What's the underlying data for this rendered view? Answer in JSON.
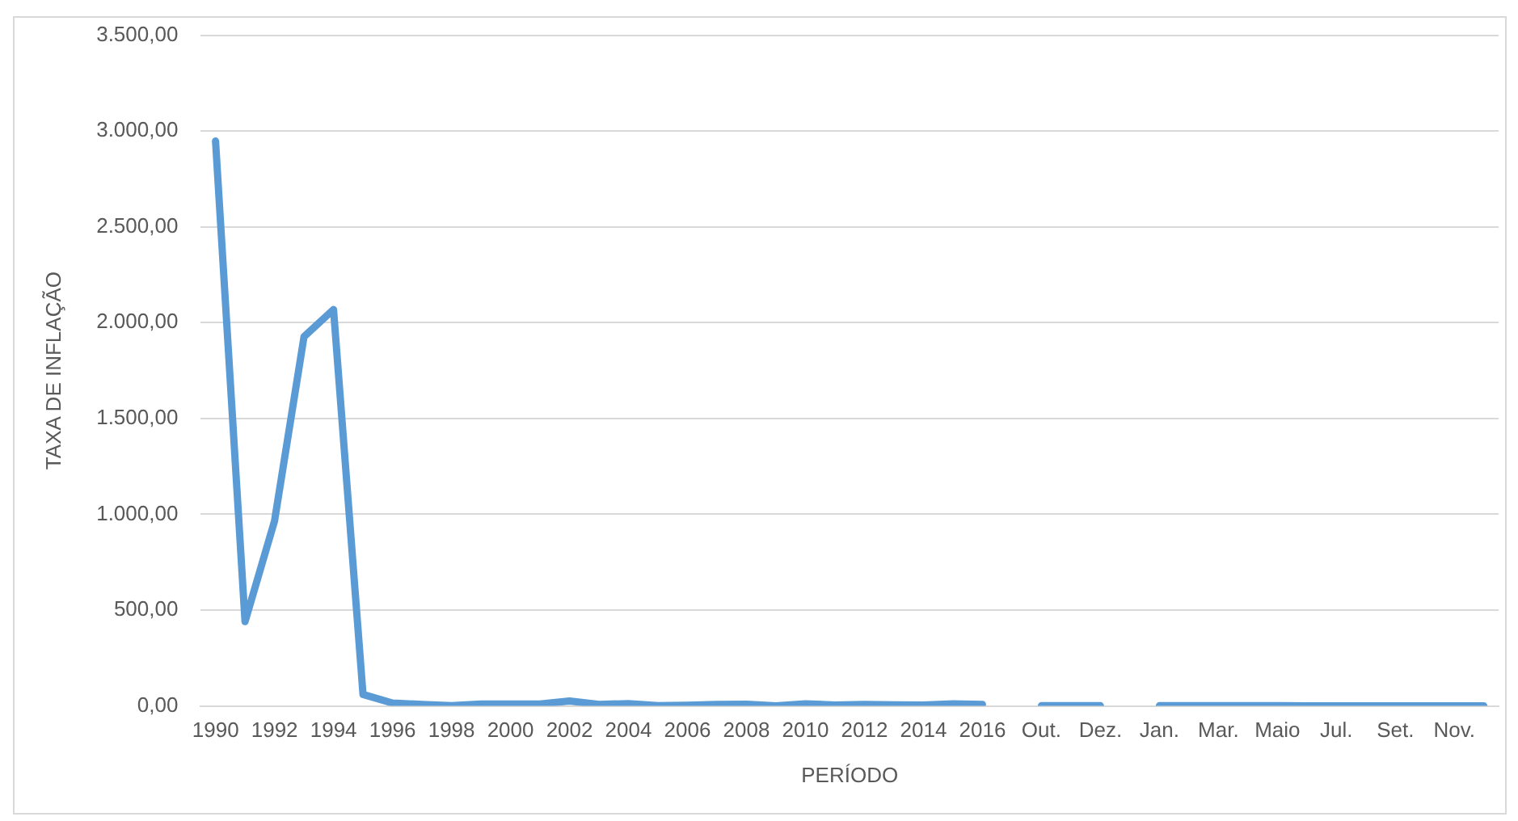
{
  "chart_data": {
    "type": "line",
    "xlabel": "PERÍODO",
    "ylabel": "TAXA DE INFLAÇÃO",
    "categories": [
      "1990",
      null,
      "1992",
      null,
      "1994",
      null,
      "1996",
      null,
      "1998",
      null,
      "2000",
      null,
      "2002",
      null,
      "2004",
      null,
      "2006",
      null,
      "2008",
      null,
      "2010",
      null,
      "2012",
      null,
      "2014",
      null,
      "2016",
      null,
      "Out.",
      null,
      "Dez.",
      null,
      "Jan.",
      null,
      "Mar.",
      null,
      "Maio",
      null,
      "Jul.",
      null,
      "Set.",
      null,
      "Nov.",
      null
    ],
    "series": [
      {
        "color": "#5b9bd5",
        "values": [
          2948,
          440,
          965,
          1927,
          2069,
          60,
          15,
          8,
          2,
          10,
          10,
          10,
          26,
          8,
          12,
          2,
          4,
          8,
          9,
          0,
          11,
          5,
          8,
          6,
          5,
          11,
          8,
          null,
          1,
          1,
          1,
          null,
          1,
          1,
          1,
          1,
          1,
          0,
          0,
          0,
          0,
          0,
          0,
          0
        ]
      }
    ],
    "ylim": [
      0,
      3500
    ],
    "yticks": [
      {
        "value": 0,
        "label": "0,00"
      },
      {
        "value": 500,
        "label": "500,00"
      },
      {
        "value": 1000,
        "label": "1.000,00"
      },
      {
        "value": 1500,
        "label": "1.500,00"
      },
      {
        "value": 2000,
        "label": "2.000,00"
      },
      {
        "value": 2500,
        "label": "2.500,00"
      },
      {
        "value": 3000,
        "label": "3.000,00"
      },
      {
        "value": 3500,
        "label": "3.500,00"
      }
    ],
    "grid": "y",
    "legend": false,
    "marker": "none",
    "line_style": "solid"
  }
}
